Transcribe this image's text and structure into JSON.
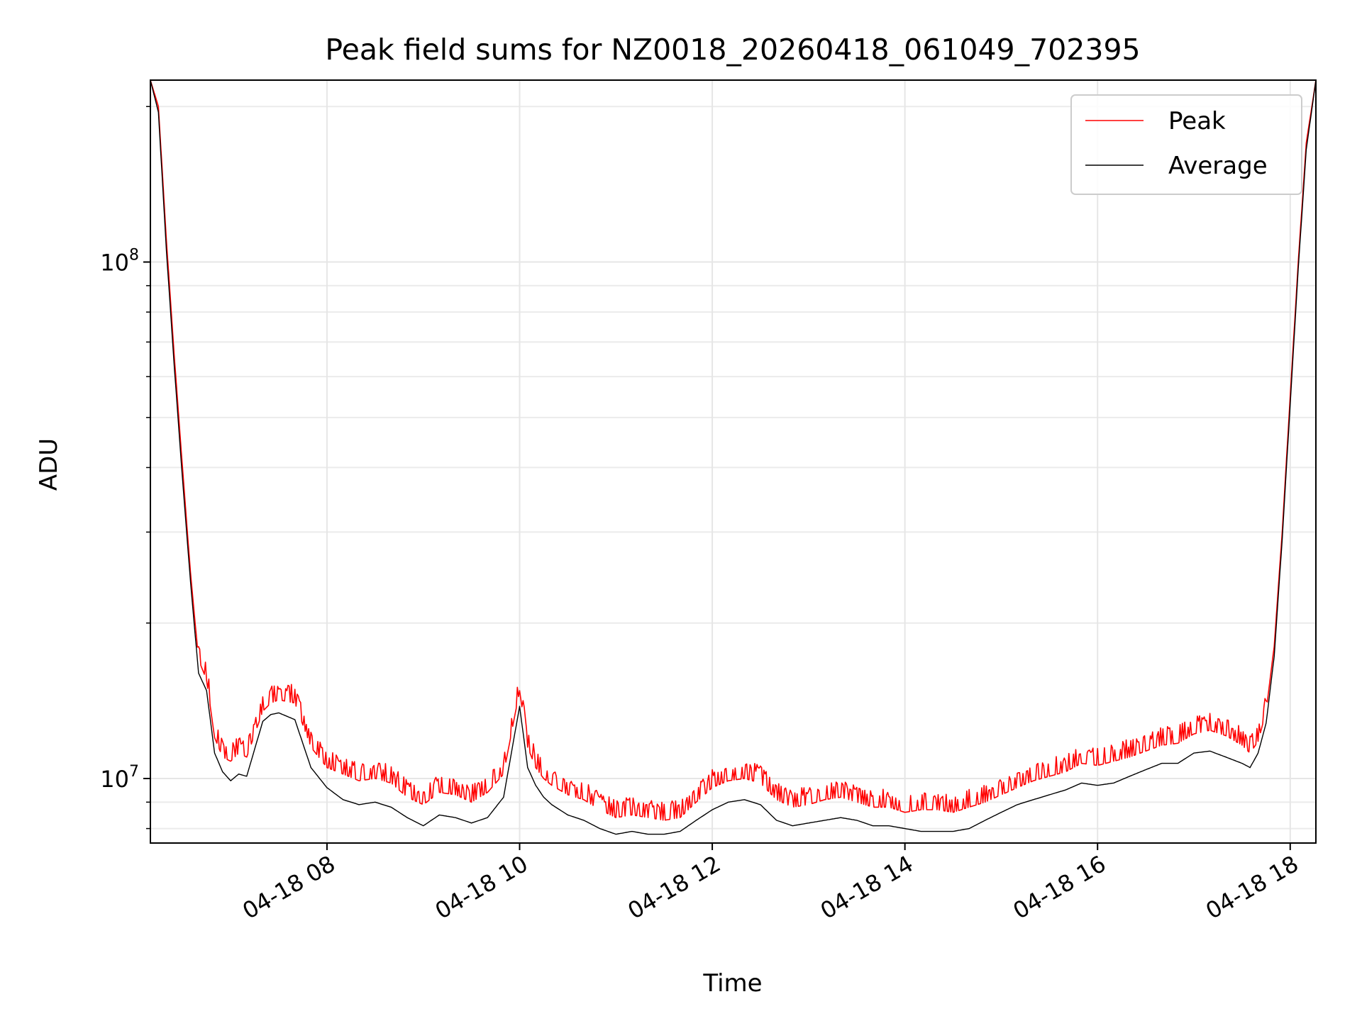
{
  "chart_data": {
    "type": "line",
    "title": "Peak field sums for NZ0018_20260418_061049_702395",
    "xlabel": "Time",
    "ylabel": "ADU",
    "yscale": "log",
    "xlim": [
      "04-18 06:10",
      "04-18 18:16"
    ],
    "ylim": [
      7500000,
      225000000
    ],
    "x_ticks": [
      "04-18 08",
      "04-18 10",
      "04-18 12",
      "04-18 14",
      "04-18 16",
      "04-18 18"
    ],
    "x_tick_times": [
      "04-18 08:00",
      "04-18 10:00",
      "04-18 12:00",
      "04-18 14:00",
      "04-18 16:00",
      "04-18 18:00"
    ],
    "y_major_ticks": [
      {
        "base": "10",
        "exp": "7",
        "value": 10000000
      },
      {
        "base": "10",
        "exp": "8",
        "value": 100000000
      }
    ],
    "y_minor_ticks": [
      8000000,
      9000000,
      20000000,
      30000000,
      40000000,
      50000000,
      60000000,
      70000000,
      80000000,
      90000000,
      200000000
    ],
    "grid": true,
    "legend_position": "top-right",
    "series": [
      {
        "name": "Peak",
        "color": "#ff0000",
        "x": [
          "06:10",
          "06:15",
          "06:20",
          "06:25",
          "06:30",
          "06:35",
          "06:40",
          "06:45",
          "06:50",
          "06:55",
          "07:00",
          "07:05",
          "07:10",
          "07:20",
          "07:25",
          "07:30",
          "07:40",
          "07:50",
          "08:00",
          "08:10",
          "08:20",
          "08:30",
          "08:40",
          "08:50",
          "09:00",
          "09:10",
          "09:20",
          "09:30",
          "09:40",
          "09:50",
          "10:00",
          "10:05",
          "10:10",
          "10:15",
          "10:20",
          "10:30",
          "10:40",
          "10:50",
          "11:00",
          "11:10",
          "11:20",
          "11:30",
          "11:40",
          "11:50",
          "12:00",
          "12:10",
          "12:20",
          "12:30",
          "12:40",
          "12:50",
          "13:00",
          "13:10",
          "13:20",
          "13:30",
          "13:40",
          "13:50",
          "14:00",
          "14:10",
          "14:20",
          "14:30",
          "14:40",
          "14:50",
          "15:00",
          "15:10",
          "15:20",
          "15:30",
          "15:40",
          "15:50",
          "16:00",
          "16:10",
          "16:20",
          "16:30",
          "16:40",
          "16:50",
          "17:00",
          "17:10",
          "17:20",
          "17:30",
          "17:35",
          "17:40",
          "17:45",
          "17:50",
          "17:55",
          "18:00",
          "18:05",
          "18:10",
          "18:16"
        ],
        "y": [
          225000000,
          200000000,
          110000000,
          65000000,
          40000000,
          25000000,
          17000000,
          15500000,
          12000000,
          11000000,
          10800000,
          11200000,
          11000000,
          13500000,
          14000000,
          14200000,
          14000000,
          11500000,
          10500000,
          10200000,
          9900000,
          10000000,
          9800000,
          9200000,
          8900000,
          9400000,
          9300000,
          9000000,
          9400000,
          10200000,
          14800000,
          11500000,
          10500000,
          10000000,
          9700000,
          9300000,
          9100000,
          8700000,
          8400000,
          8500000,
          8400000,
          8300000,
          8400000,
          9000000,
          9600000,
          9900000,
          10000000,
          9800000,
          9100000,
          8800000,
          8900000,
          9100000,
          9200000,
          9000000,
          8800000,
          8800000,
          8600000,
          8700000,
          8700000,
          8600000,
          8800000,
          9000000,
          9300000,
          9600000,
          9900000,
          10100000,
          10300000,
          10700000,
          10600000,
          10800000,
          11000000,
          11300000,
          11600000,
          11700000,
          12200000,
          12400000,
          12100000,
          11600000,
          11200000,
          11800000,
          13500000,
          18000000,
          30000000,
          55000000,
          100000000,
          170000000,
          225000000
        ]
      },
      {
        "name": "Average",
        "color": "#000000",
        "x": [
          "06:10",
          "06:15",
          "06:20",
          "06:25",
          "06:30",
          "06:35",
          "06:40",
          "06:45",
          "06:50",
          "06:55",
          "07:00",
          "07:05",
          "07:10",
          "07:20",
          "07:25",
          "07:30",
          "07:40",
          "07:50",
          "08:00",
          "08:10",
          "08:20",
          "08:30",
          "08:40",
          "08:50",
          "09:00",
          "09:10",
          "09:20",
          "09:30",
          "09:40",
          "09:50",
          "10:00",
          "10:05",
          "10:10",
          "10:15",
          "10:20",
          "10:30",
          "10:40",
          "10:50",
          "11:00",
          "11:10",
          "11:20",
          "11:30",
          "11:40",
          "11:50",
          "12:00",
          "12:10",
          "12:20",
          "12:30",
          "12:40",
          "12:50",
          "13:00",
          "13:10",
          "13:20",
          "13:30",
          "13:40",
          "13:50",
          "14:00",
          "14:10",
          "14:20",
          "14:30",
          "14:40",
          "14:50",
          "15:00",
          "15:10",
          "15:20",
          "15:30",
          "15:40",
          "15:50",
          "16:00",
          "16:10",
          "16:20",
          "16:30",
          "16:40",
          "16:50",
          "17:00",
          "17:10",
          "17:20",
          "17:30",
          "17:35",
          "17:40",
          "17:45",
          "17:50",
          "17:55",
          "18:00",
          "18:05",
          "18:10",
          "18:16"
        ],
        "y": [
          225000000,
          195000000,
          105000000,
          62000000,
          38000000,
          24000000,
          16000000,
          14800000,
          11200000,
          10300000,
          9900000,
          10200000,
          10100000,
          12900000,
          13300000,
          13400000,
          13000000,
          10500000,
          9600000,
          9100000,
          8900000,
          9000000,
          8800000,
          8400000,
          8100000,
          8500000,
          8400000,
          8200000,
          8400000,
          9200000,
          13800000,
          10500000,
          9700000,
          9200000,
          8900000,
          8500000,
          8300000,
          8000000,
          7800000,
          7900000,
          7800000,
          7800000,
          7900000,
          8300000,
          8700000,
          9000000,
          9100000,
          8900000,
          8300000,
          8100000,
          8200000,
          8300000,
          8400000,
          8300000,
          8100000,
          8100000,
          8000000,
          7900000,
          7900000,
          7900000,
          8000000,
          8300000,
          8600000,
          8900000,
          9100000,
          9300000,
          9500000,
          9800000,
          9700000,
          9800000,
          10100000,
          10400000,
          10700000,
          10700000,
          11200000,
          11300000,
          11000000,
          10700000,
          10500000,
          11200000,
          12800000,
          17200000,
          29000000,
          53000000,
          97000000,
          165000000,
          225000000
        ]
      }
    ]
  }
}
